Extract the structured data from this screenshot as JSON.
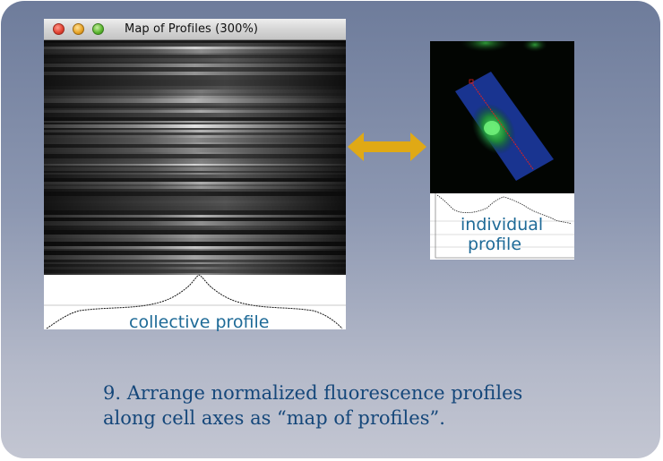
{
  "window": {
    "title": "Map of Profiles (300%)",
    "buttons": [
      "close",
      "minimize",
      "zoom"
    ]
  },
  "collective_profile": {
    "label": "collective profile"
  },
  "individual_profile": {
    "label_line1": "individual",
    "label_line2": "profile"
  },
  "arrow": {
    "color": "#e0a915",
    "icon": "double-headed-arrow-icon"
  },
  "caption": {
    "line1": "9. Arrange normalized fluorescence profiles",
    "line2": "along cell axes as “map of profiles”."
  },
  "colors": {
    "label_blue": "#1e6a97",
    "caption_blue": "#15477a",
    "fluorescence_green": "#3cd24a",
    "overlay_blue": "#2a4fd0",
    "profile_line_red": "#e02020"
  }
}
